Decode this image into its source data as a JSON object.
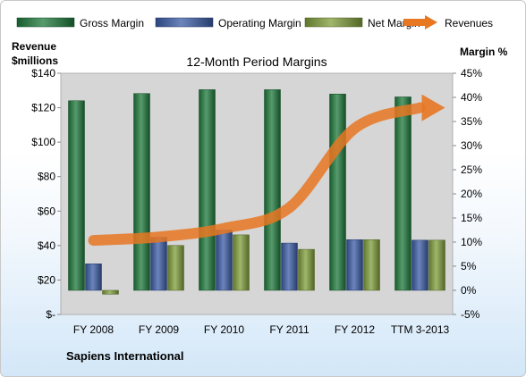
{
  "chart_data": {
    "type": "bar",
    "title": "12-Month Period Margins",
    "company": "Sapiens International",
    "left_axis_label": [
      "Revenue",
      "$millions"
    ],
    "right_axis_label": "Margin %",
    "left_ylim": [
      0,
      140
    ],
    "left_ticks": [
      0,
      20,
      40,
      60,
      80,
      100,
      120,
      140
    ],
    "left_tick_labels": [
      "$-",
      "$20",
      "$40",
      "$60",
      "$80",
      "$100",
      "$120",
      "$140"
    ],
    "right_ylim": [
      -5,
      45
    ],
    "right_ticks": [
      -5,
      0,
      5,
      10,
      15,
      20,
      25,
      30,
      35,
      40,
      45
    ],
    "right_tick_labels": [
      "-5%",
      "0%",
      "5%",
      "10%",
      "15%",
      "20%",
      "25%",
      "30%",
      "35%",
      "40%",
      "45%"
    ],
    "categories": [
      "FY 2008",
      "FY 2009",
      "FY 2010",
      "FY 2011",
      "FY 2012",
      "TTM 3-2013"
    ],
    "legend_position": "top",
    "grid": false,
    "series": [
      {
        "name": "Gross Margin",
        "type": "bar",
        "axis": "right",
        "color": "#1f7a3c",
        "values": [
          39.3,
          40.8,
          41.6,
          41.6,
          40.7,
          40.1
        ]
      },
      {
        "name": "Operating Margin",
        "type": "bar",
        "axis": "right",
        "color": "#3b5ca6",
        "values": [
          5.5,
          11.0,
          12.5,
          9.8,
          10.5,
          10.4
        ]
      },
      {
        "name": "Net Margin",
        "type": "bar",
        "axis": "right",
        "color": "#7f9e3a",
        "values": [
          -0.8,
          9.3,
          11.5,
          8.5,
          10.5,
          10.4
        ]
      },
      {
        "name": "Revenues",
        "type": "line",
        "axis": "left",
        "color": "#e87722",
        "values": [
          43,
          45,
          50,
          62,
          108,
          120
        ]
      }
    ]
  }
}
